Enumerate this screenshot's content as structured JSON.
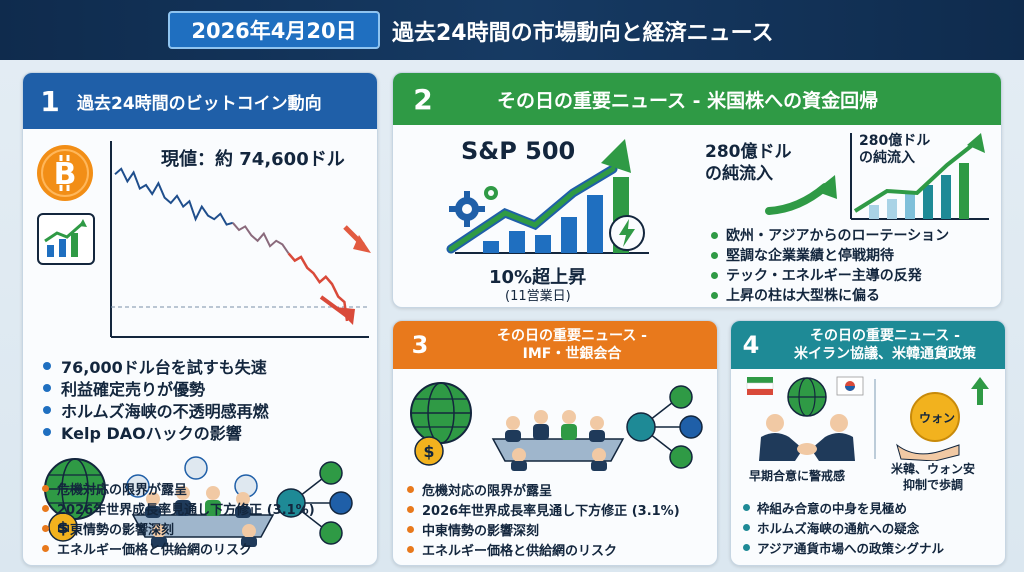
{
  "header": {
    "date": "2026年4月20日",
    "title": "過去24時間の市場動向と経済ニュース"
  },
  "panel1": {
    "number": "1",
    "title": "過去24時間のビットコイン動向",
    "price_label": "現値：約 74,600ドル",
    "bullets": [
      "76,000ドル台を試すも失速",
      "利益確定売りが優勢",
      "ホルムズ海峡の不透明感再燃",
      "Kelp DAOハックの影響"
    ],
    "lower_bullets": [
      "危機対応の限界が露呈",
      "2026年世界成長率見通し下方修正 (3.1%)",
      "中東情勢の影響深刻",
      "エネルギー価格と供給網のリスク"
    ],
    "icons": [
      "bitcoin-icon",
      "chart-up-icon",
      "globe-icon",
      "dollar-icon",
      "meeting-icon",
      "network-icon"
    ]
  },
  "panel2": {
    "number": "2",
    "title": "その日の重要ニュース - 米国株への資金回帰",
    "sp_label": "S&P 500",
    "gain_label": "10%超上昇",
    "gain_sub": "(11営業日)",
    "inflow_label_1": "280億ドル",
    "inflow_label_2": "の純流入",
    "bullets": [
      "欧州・アジアからのローテーション",
      "堅調な企業業績と停戦期待",
      "テック・エネルギー主導の反発",
      "上昇の柱は大型株に偏る"
    ],
    "icons": [
      "gear-icon",
      "lightning-icon",
      "arrow-up-icon"
    ]
  },
  "panel3": {
    "number": "3",
    "title_1": "その日の重要ニュース -",
    "title_2": "IMF・世銀会合",
    "bullets": [
      "危機対応の限界が露呈",
      "2026年世界成長率見通し下方修正 (3.1%)",
      "中東情勢の影響深刻",
      "エネルギー価格と供給網のリスク"
    ],
    "icons": [
      "globe-icon",
      "dollar-icon",
      "meeting-icon",
      "network-icon"
    ]
  },
  "panel4": {
    "number": "4",
    "title_1": "その日の重要ニュース -",
    "title_2": "米イラン協議、米韓通貨政策",
    "caption_left": "早期合意に警戒感",
    "coin_label": "ウォン",
    "caption_right_1": "米韓、ウォン安",
    "caption_right_2": "抑制で歩調",
    "bullets": [
      "枠組み合意の中身を見極め",
      "ホルムズ海峡の通航への疑念",
      "アジア通貨市場への政策シグナル"
    ],
    "icons": [
      "iran-flag-icon",
      "korea-flag-icon",
      "handshake-icon",
      "coin-icon",
      "arrow-up-icon"
    ]
  },
  "colors": {
    "navy": "#0f2b4d",
    "blue": "#1f5fa8",
    "green": "#2f9a45",
    "orange": "#e8791c",
    "teal": "#1e8a96",
    "bitcoin": "#f28e16",
    "red": "#d94a3a"
  }
}
